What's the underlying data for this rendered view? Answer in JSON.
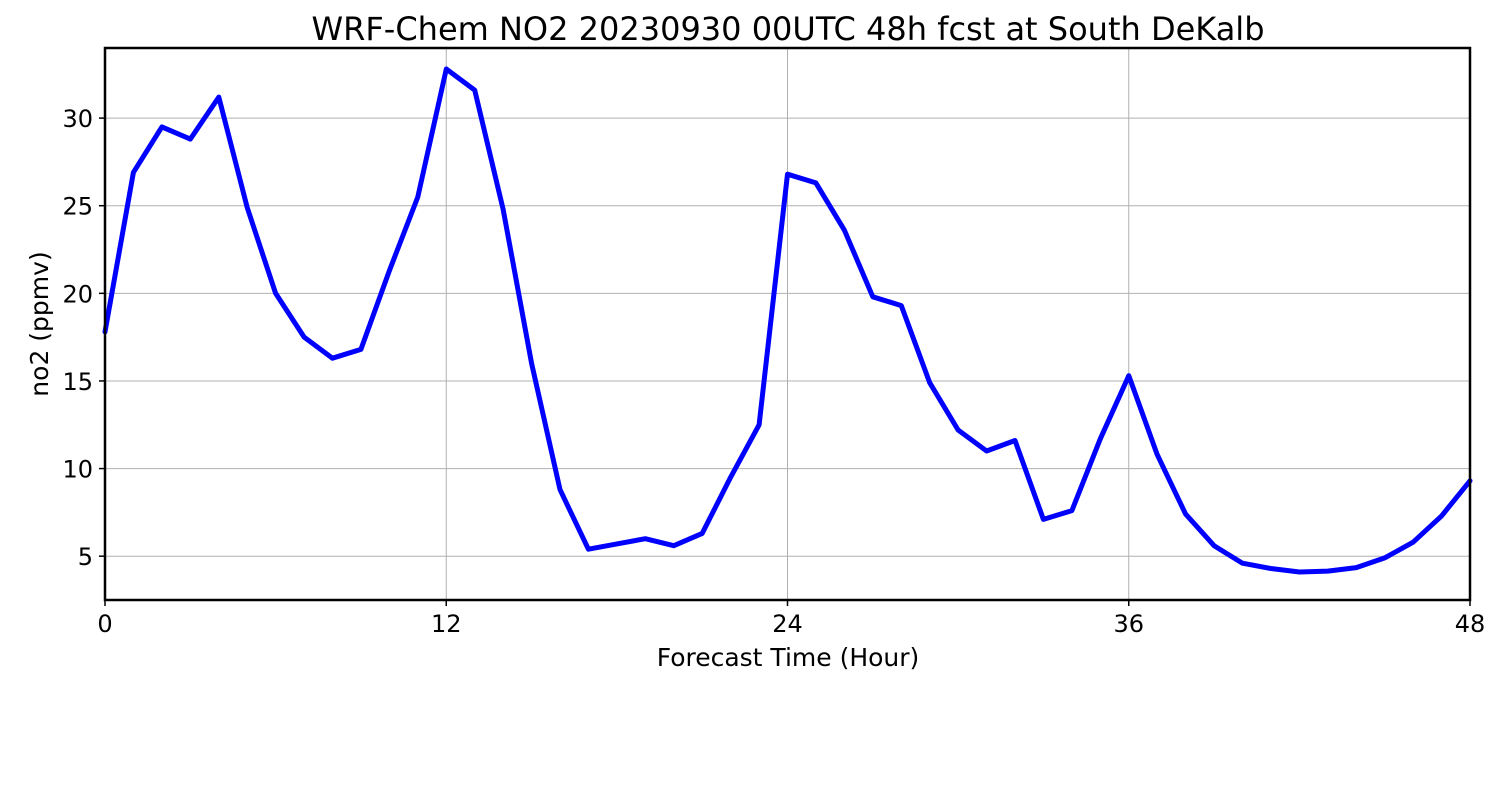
{
  "chart_data": {
    "type": "line",
    "title": "WRF-Chem NO2  20230930 00UTC 48h fcst at South DeKalb",
    "xlabel": "Forecast Time (Hour)",
    "ylabel": "no2  (ppmv)",
    "xlim": [
      0,
      48
    ],
    "ylim": [
      2.5,
      34
    ],
    "xticks": [
      0,
      12,
      24,
      36,
      48
    ],
    "yticks": [
      5,
      10,
      15,
      20,
      25,
      30
    ],
    "grid": true,
    "series": [
      {
        "color": "#0000ff",
        "x": [
          0,
          1,
          2,
          3,
          4,
          5,
          6,
          7,
          8,
          9,
          10,
          11,
          12,
          13,
          14,
          15,
          16,
          17,
          18,
          19,
          20,
          21,
          22,
          23,
          24,
          25,
          26,
          27,
          28,
          29,
          30,
          31,
          32,
          33,
          34,
          35,
          36,
          37,
          38,
          39,
          40,
          41,
          42,
          43,
          44,
          45,
          46,
          47,
          48
        ],
        "values": [
          17.8,
          26.9,
          29.5,
          28.8,
          31.2,
          24.9,
          20.0,
          17.5,
          16.3,
          16.8,
          21.3,
          25.5,
          32.8,
          31.6,
          24.8,
          16.0,
          8.8,
          5.4,
          5.7,
          6.0,
          5.6,
          6.3,
          9.5,
          12.5,
          26.8,
          26.3,
          23.6,
          19.8,
          19.3,
          14.9,
          12.2,
          11.0,
          11.6,
          7.1,
          7.6,
          11.7,
          15.3,
          10.8,
          7.4,
          5.6,
          4.6,
          4.3,
          4.1,
          4.15,
          4.35,
          4.9,
          5.8,
          7.3,
          9.3
        ]
      }
    ]
  }
}
